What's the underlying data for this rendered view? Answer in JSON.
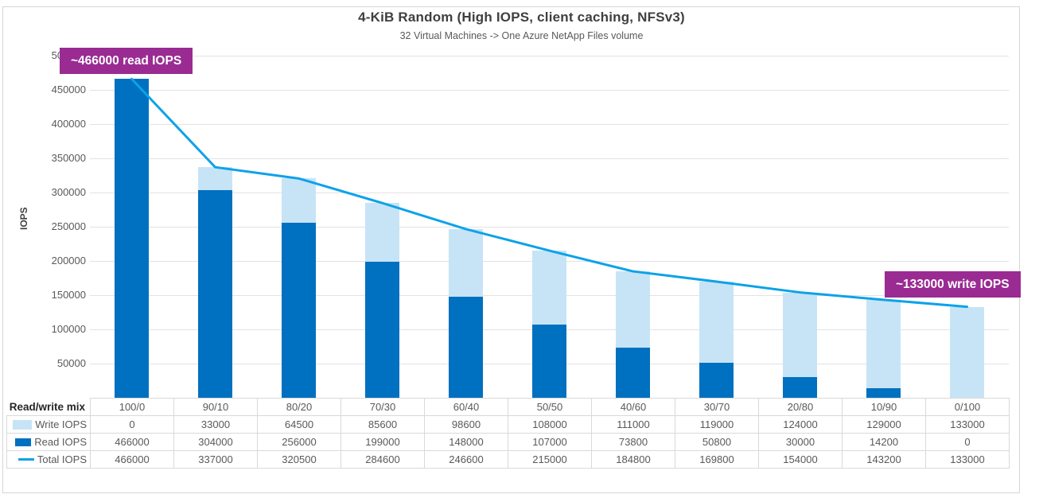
{
  "title": "4-KiB Random (High IOPS, client caching, NFSv3)",
  "subtitle": "32 Virtual Machines -> One Azure NetApp Files volume",
  "annotations": {
    "read_peak": "~466000 read IOPS",
    "write_peak": "~133000 write IOPS"
  },
  "colors": {
    "read_bar": "#0070C0",
    "write_bar": "#C7E4F7",
    "total_line": "#0DA2E8",
    "annotation_bg": "#9A2B92",
    "grid": "#E2E2E2",
    "table_border": "#D9D9D9"
  },
  "chart_data": {
    "type": "bar",
    "subtype": "stacked-bars-with-line-overlay",
    "title": "4-KiB Random (High IOPS, client caching, NFSv3)",
    "subtitle": "32 Virtual Machines -> One Azure NetApp Files volume",
    "xlabel": "Read/write mix",
    "ylabel": "IOPS",
    "ylim": [
      0,
      500000
    ],
    "ytick_step": 50000,
    "grid": "horizontal",
    "legend_position": "data-table-left",
    "categories": [
      "100/0",
      "90/10",
      "80/20",
      "70/30",
      "60/40",
      "50/50",
      "40/60",
      "30/70",
      "20/80",
      "10/90",
      "0/100"
    ],
    "series": [
      {
        "name": "Write IOPS",
        "type": "bar-segment-top",
        "color": "#C7E4F7",
        "values": [
          0,
          33000,
          64500,
          85600,
          98600,
          108000,
          111000,
          119000,
          124000,
          129000,
          133000
        ]
      },
      {
        "name": "Read IOPS",
        "type": "bar-segment-bottom",
        "color": "#0070C0",
        "values": [
          466000,
          304000,
          256000,
          199000,
          148000,
          107000,
          73800,
          50800,
          30000,
          14200,
          0
        ]
      },
      {
        "name": "Total IOPS",
        "type": "line",
        "color": "#0DA2E8",
        "values": [
          466000,
          337000,
          320500,
          284600,
          246600,
          215000,
          184800,
          169800,
          154000,
          143200,
          133000
        ]
      }
    ]
  },
  "table": {
    "corner_label": "Read/write mix"
  }
}
